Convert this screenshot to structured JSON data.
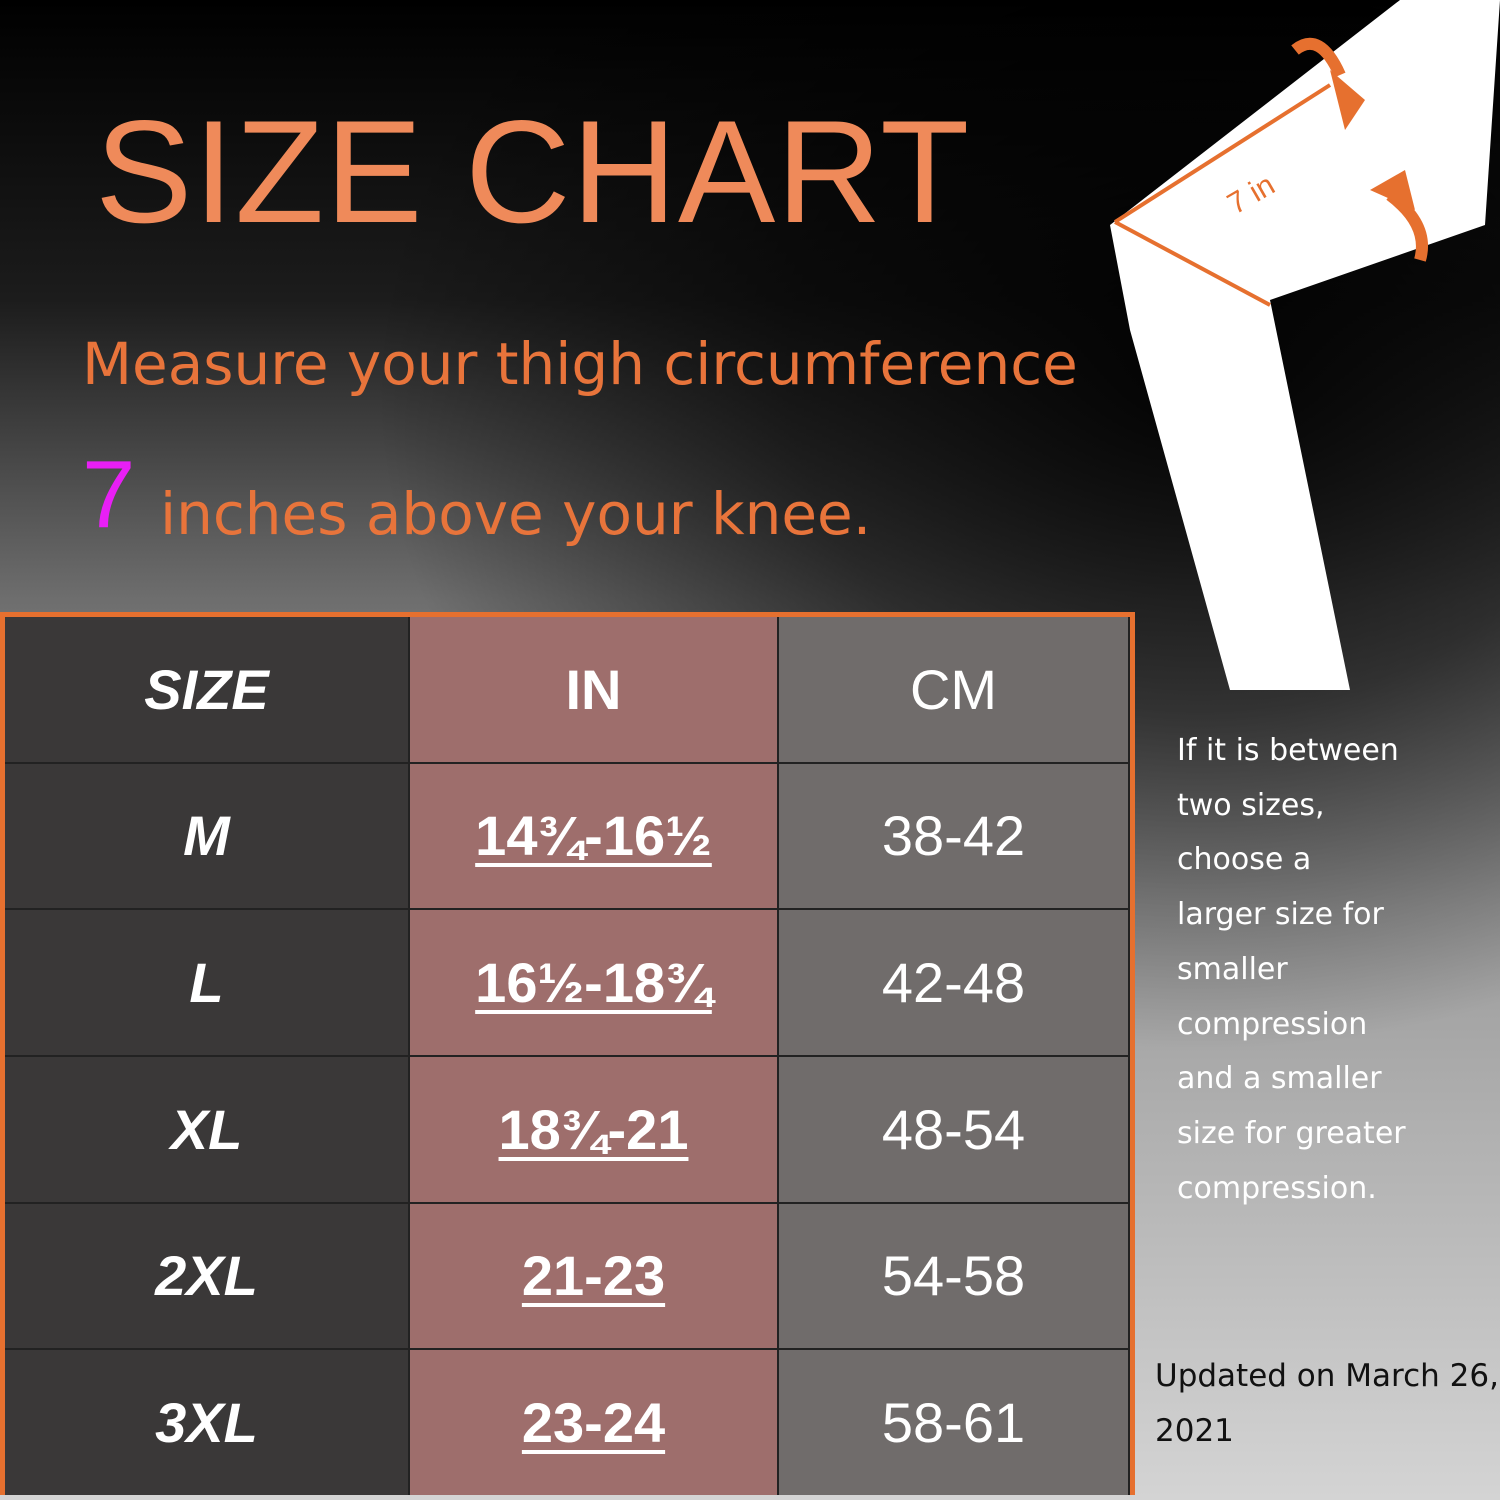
{
  "title": "SIZE CHART",
  "instruction": {
    "line1": "Measure your thigh  circumference",
    "number": "7",
    "line2": "inches above your knee."
  },
  "diagram": {
    "label": "7 in"
  },
  "table": {
    "header": [
      "SIZE",
      "IN",
      "CM"
    ],
    "rows": [
      [
        "M",
        "14¾-16½",
        "38-42"
      ],
      [
        "L",
        "16½-18¾",
        "42-48"
      ],
      [
        "XL",
        "18¾-21",
        "48-54"
      ],
      [
        "2XL",
        "21-23",
        "54-58"
      ],
      [
        "3XL",
        "23-24",
        "58-61"
      ]
    ]
  },
  "note": {
    "lines": [
      "If it is between",
      "two sizes,",
      "choose a",
      "larger size for",
      "smaller",
      "compression",
      "and a smaller",
      "size for greater",
      "compression."
    ]
  },
  "updated": {
    "lines": [
      "Updated on March 26,",
      "2021"
    ]
  }
}
